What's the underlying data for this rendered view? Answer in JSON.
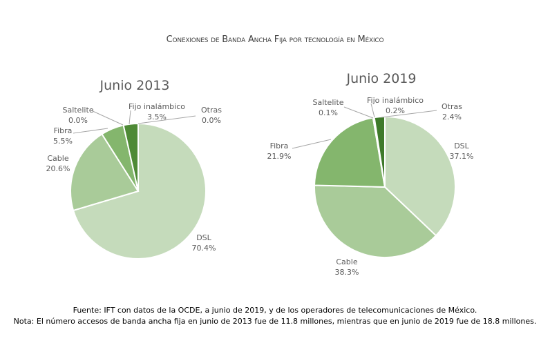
{
  "title": "Conexiones de Banda Ancha Fija por tecnología en México",
  "chart_data": [
    {
      "type": "pie",
      "title": "Junio 2013",
      "categories": [
        "DSL",
        "Cable",
        "Fibra",
        "Saltelite",
        "Fijo inalámbico",
        "Otras"
      ],
      "values": [
        70.4,
        20.6,
        5.5,
        0.0,
        3.5,
        0.0
      ],
      "labels": [
        "70.4%",
        "20.6%",
        "5.5%",
        "0.0%",
        "3.5%",
        "0.0%"
      ],
      "colors": [
        "#c5dbbb",
        "#a9cb99",
        "#84b66d",
        "#6aa24f",
        "#4e8a36",
        "#3e7a2a"
      ]
    },
    {
      "type": "pie",
      "title": "Junio 2019",
      "categories": [
        "DSL",
        "Cable",
        "Fibra",
        "Saltelite",
        "Fijo inalámbico",
        "Otras"
      ],
      "values": [
        37.1,
        38.3,
        21.9,
        0.1,
        0.2,
        2.4
      ],
      "labels": [
        "37.1%",
        "38.3%",
        "21.9%",
        "0.1%",
        "0.2%",
        "2.4%"
      ],
      "colors": [
        "#c5dbbb",
        "#a9cb99",
        "#84b66d",
        "#6aa24f",
        "#4e8a36",
        "#3e7a2a"
      ]
    }
  ],
  "footer": {
    "source": "Fuente: IFT con datos de la OCDE, a junio de 2019, y de los operadores de telecomunicaciones de México.",
    "note": "Nota: El número accesos de banda ancha fija en junio de 2013 fue de 11.8 millones, mientras que en junio de 2019 fue de 18.8 millones."
  }
}
